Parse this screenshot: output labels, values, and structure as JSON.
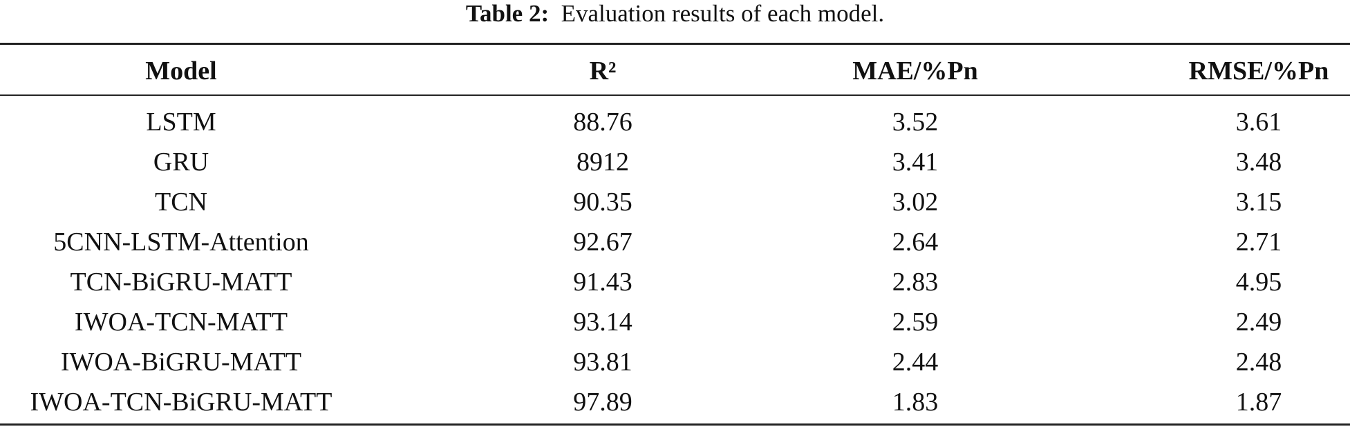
{
  "caption": {
    "label": "Table 2:",
    "text": "Evaluation results of each model."
  },
  "table": {
    "header": [
      "Model",
      "R²",
      "MAE/%Pn",
      "RMSE/%Pn"
    ],
    "rows": [
      [
        "LSTM",
        "88.76",
        "3.52",
        "3.61"
      ],
      [
        "GRU",
        "8912",
        "3.41",
        "3.48"
      ],
      [
        "TCN",
        "90.35",
        "3.02",
        "3.15"
      ],
      [
        "5CNN-LSTM-Attention",
        "92.67",
        "2.64",
        "2.71"
      ],
      [
        "TCN-BiGRU-MATT",
        "91.43",
        "2.83",
        "4.95"
      ],
      [
        "IWOA-TCN-MATT",
        "93.14",
        "2.59",
        "2.49"
      ],
      [
        "IWOA-BiGRU-MATT",
        "93.81",
        "2.44",
        "2.48"
      ],
      [
        "IWOA-TCN-BiGRU-MATT",
        "97.89",
        "1.83",
        "1.87"
      ]
    ]
  }
}
